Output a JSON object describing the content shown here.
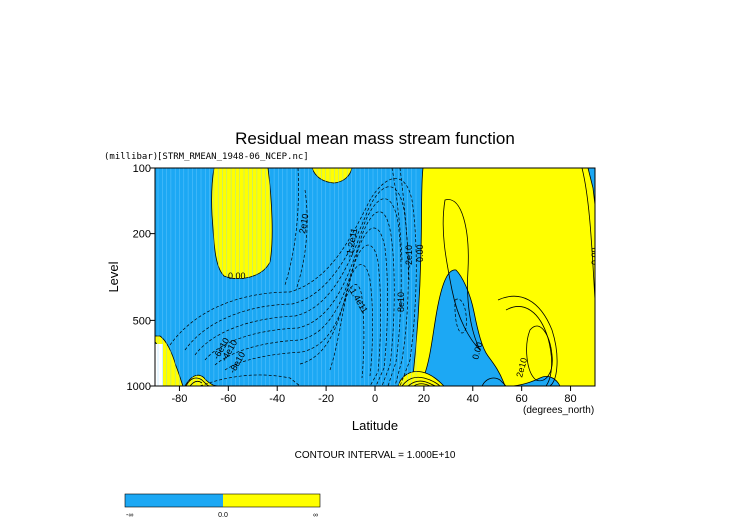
{
  "chart_data": {
    "type": "contour",
    "title": "Residual mean mass stream function",
    "subtitle": "[STRM_RMEAN_1948-06_NCEP.nc]",
    "xlabel": "Latitude",
    "x_unit": "(degrees_north)",
    "ylabel": "Level",
    "y_unit": "(millibar)",
    "xlim": [
      -90,
      90
    ],
    "ylim": [
      1000,
      100
    ],
    "y_scale": "log",
    "x_ticks": [
      "-80",
      "-60",
      "-40",
      "-20",
      "0",
      "20",
      "40",
      "60",
      "80"
    ],
    "x_tick_values": [
      -80,
      -60,
      -40,
      -20,
      0,
      20,
      40,
      60,
      80
    ],
    "y_ticks": [
      "100",
      "200",
      "500",
      "1000"
    ],
    "y_tick_values": [
      100,
      200,
      500,
      1000
    ],
    "contour_interval_text": "CONTOUR INTERVAL = 1.000E+10",
    "contour_labels": [
      "0.00",
      "2e10",
      "-1.2e11",
      "-1.4e11",
      "-2e10",
      "8e10",
      "-6e10",
      "-4e10",
      "-8e10",
      "0.00",
      "0.00",
      "0.00",
      "2e10"
    ],
    "colors": {
      "negative": "#1ca8f4",
      "positive": "#ffff00"
    },
    "colorbar": {
      "labels": [
        "-∞",
        "0.0",
        "∞"
      ]
    }
  }
}
